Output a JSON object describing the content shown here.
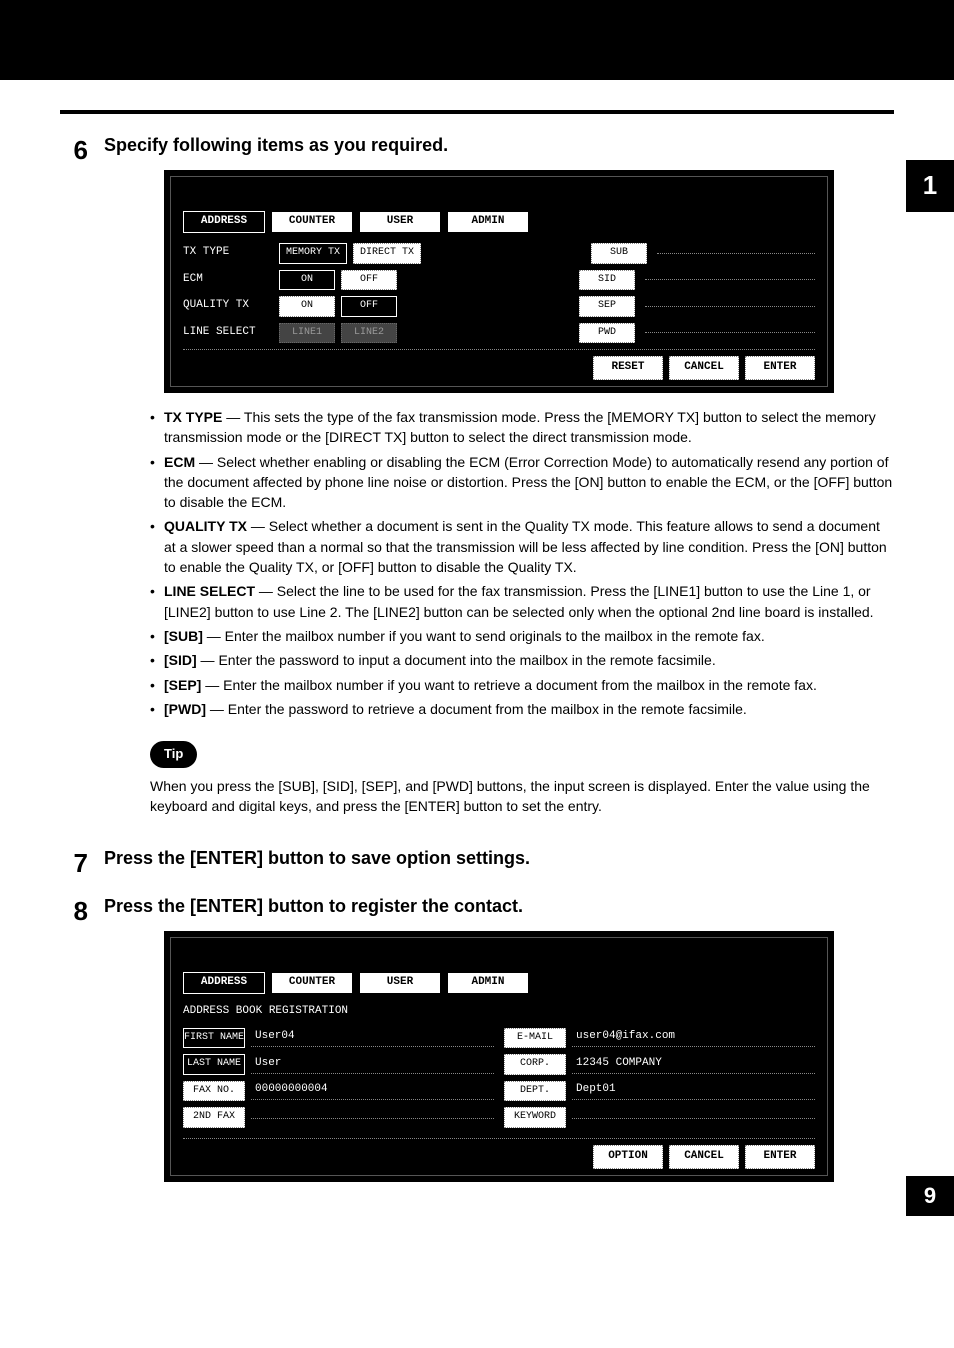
{
  "chapter_tab": "1",
  "page_number": "9",
  "steps": {
    "s6": {
      "num": "6",
      "title": "Specify following items as you required."
    },
    "s7": {
      "num": "7",
      "title": "Press the [ENTER] button to save option settings."
    },
    "s8": {
      "num": "8",
      "title": "Press the [ENTER] button to register the contact."
    }
  },
  "screen1": {
    "tabs": {
      "address": "ADDRESS",
      "counter": "COUNTER",
      "user": "USER",
      "admin": "ADMIN"
    },
    "rows": {
      "tx_type": {
        "label": "TX TYPE",
        "opt1": "MEMORY TX",
        "opt2": "DIRECT TX",
        "side": "SUB"
      },
      "ecm": {
        "label": "ECM",
        "opt1": "ON",
        "opt2": "OFF",
        "side": "SID"
      },
      "quality_tx": {
        "label": "QUALITY TX",
        "opt1": "ON",
        "opt2": "OFF",
        "side": "SEP"
      },
      "line_select": {
        "label": "LINE SELECT",
        "opt1": "LINE1",
        "opt2": "LINE2",
        "side": "PWD"
      }
    },
    "actions": {
      "reset": "RESET",
      "cancel": "CANCEL",
      "enter": "ENTER"
    }
  },
  "bullets": {
    "b1": {
      "term": "TX TYPE",
      "text": " — This sets the type of the fax transmission mode.  Press the [MEMORY TX] button to select the memory transmission mode or the [DIRECT TX] button to select the direct transmission mode."
    },
    "b2": {
      "term": "ECM",
      "text": " — Select whether enabling or disabling the ECM (Error Correction Mode) to automatically resend any portion of the document affected by phone line noise or distortion.  Press the [ON] button to enable the ECM, or the [OFF] button to disable the ECM."
    },
    "b3": {
      "term": "QUALITY TX",
      "text": " — Select whether a document is sent in the Quality TX mode. This feature allows to send a document at a slower speed than a normal so that the transmission will be less affected by line condition.  Press the [ON] button to enable the Quality TX, or [OFF] button to disable the Quality TX."
    },
    "b4": {
      "term": "LINE SELECT",
      "text": " — Select the line to be used for the fax transmission.  Press the [LINE1] button to use the Line 1, or [LINE2] button to use Line 2.  The [LINE2] button can be selected only when the optional 2nd line board is installed."
    },
    "b5": {
      "term": "[SUB]",
      "text": " — Enter the mailbox number if you want to send originals to the mailbox in the remote fax."
    },
    "b6": {
      "term": "[SID]",
      "text": " — Enter the password to input a document into the mailbox in the remote facsimile."
    },
    "b7": {
      "term": "[SEP]",
      "text": " — Enter the mailbox number if you want to retrieve a document from the mailbox in the remote fax."
    },
    "b8": {
      "term": "[PWD]",
      "text": " — Enter the password to retrieve a document from the mailbox in the remote facsimile."
    }
  },
  "tip": {
    "label": "Tip",
    "text": "When you press the [SUB], [SID], [SEP], and [PWD] buttons, the input screen is displayed.  Enter the value using the keyboard and digital keys, and press the [ENTER] button to set the entry."
  },
  "screen2": {
    "tabs": {
      "address": "ADDRESS",
      "counter": "COUNTER",
      "user": "USER",
      "admin": "ADMIN"
    },
    "heading": "ADDRESS BOOK REGISTRATION",
    "left": {
      "first_name": {
        "label": "FIRST NAME",
        "value": "User04"
      },
      "last_name": {
        "label": "LAST NAME",
        "value": "User"
      },
      "fax_no": {
        "label": "FAX NO.",
        "value": "00000000004"
      },
      "second_fax": {
        "label": "2ND FAX",
        "value": ""
      }
    },
    "right": {
      "email": {
        "label": "E-MAIL",
        "value": "user04@ifax.com"
      },
      "corp": {
        "label": "CORP.",
        "value": "12345 COMPANY"
      },
      "dept": {
        "label": "DEPT.",
        "value": "Dept01"
      },
      "keyword": {
        "label": "KEYWORD",
        "value": ""
      }
    },
    "actions": {
      "option": "OPTION",
      "cancel": "CANCEL",
      "enter": "ENTER"
    }
  }
}
